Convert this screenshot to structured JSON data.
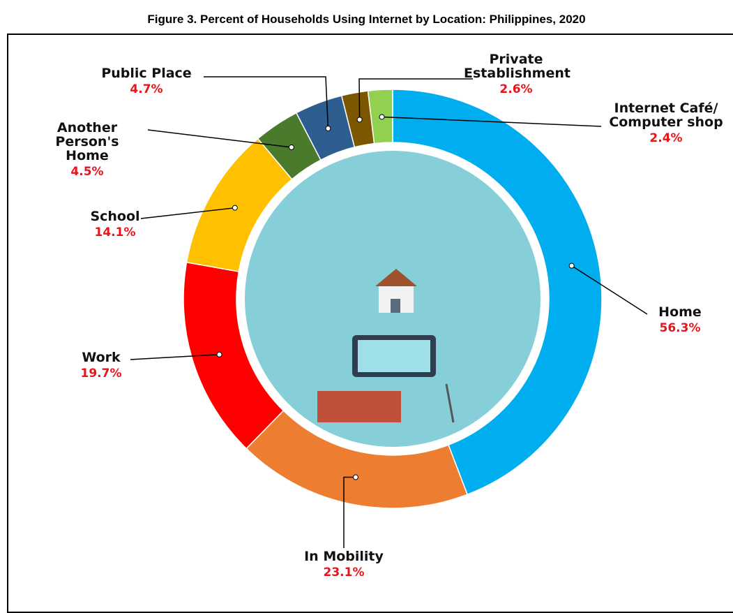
{
  "chart_data": {
    "type": "donut",
    "title": "Figure 3. Percent of Households Using Internet by Location: Philippines, 2020",
    "categories": [
      "Home",
      "In Mobility",
      "Work",
      "School",
      "Another Person's Home",
      "Public Place",
      "Private Establishment",
      "Internet Café/ Computer shop"
    ],
    "values": [
      56.3,
      23.1,
      19.7,
      14.1,
      4.5,
      4.7,
      2.6,
      2.4
    ],
    "value_labels": [
      "56.3%",
      "23.1%",
      "19.7%",
      "14.1%",
      "4.5%",
      "4.7%",
      "2.6%",
      "2.4%"
    ],
    "colors": [
      "#00aeef",
      "#ed7d31",
      "#ff0000",
      "#ffc000",
      "#4a7a2c",
      "#2e5d8f",
      "#7b5800",
      "#92d050"
    ]
  }
}
